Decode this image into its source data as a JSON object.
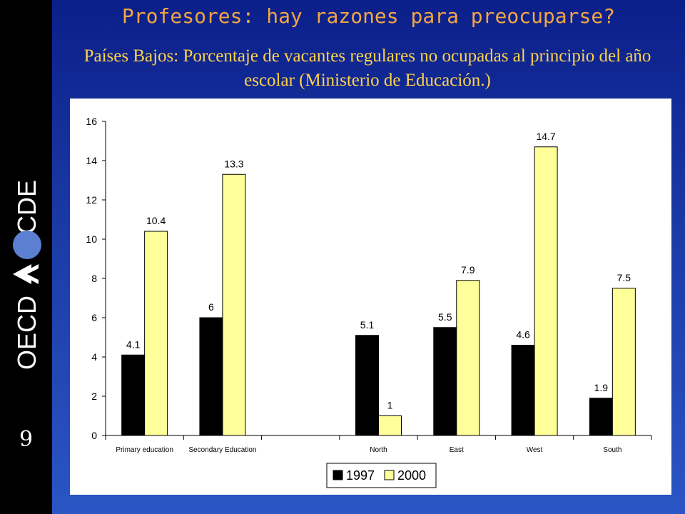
{
  "header": {
    "title": "Profesores: hay razones para preocuparse?",
    "subtitle": "Países Bajos: Porcentaje de vacantes regulares no ocupadas al principio del año escolar (Ministerio de Educación.)"
  },
  "sidebar": {
    "brand_left": "OECD",
    "brand_right": "OCDE",
    "page_number": "9"
  },
  "colors": {
    "series_1997": "#000000",
    "series_2000": "#ffff99"
  },
  "chart_data": {
    "type": "bar",
    "categories": [
      "Primary education",
      "Secondary Education",
      "",
      "North",
      "East",
      "West",
      "South"
    ],
    "series": [
      {
        "name": "1997",
        "values": [
          4.1,
          6,
          null,
          5.1,
          5.5,
          4.6,
          1.9
        ],
        "labels": [
          "4.1",
          "6",
          "",
          "5.1",
          "5.5",
          "4.6",
          "1.9"
        ]
      },
      {
        "name": "2000",
        "values": [
          10.4,
          13.3,
          null,
          1,
          7.9,
          14.7,
          7.5
        ],
        "labels": [
          "10.4",
          "13.3",
          "",
          "1",
          "7.9",
          "14.7",
          "7.5"
        ]
      }
    ],
    "yticks": [
      0,
      2,
      4,
      6,
      8,
      10,
      12,
      14,
      16
    ],
    "ylim": [
      0,
      16
    ],
    "grid": false,
    "legend": "bottom-center"
  }
}
